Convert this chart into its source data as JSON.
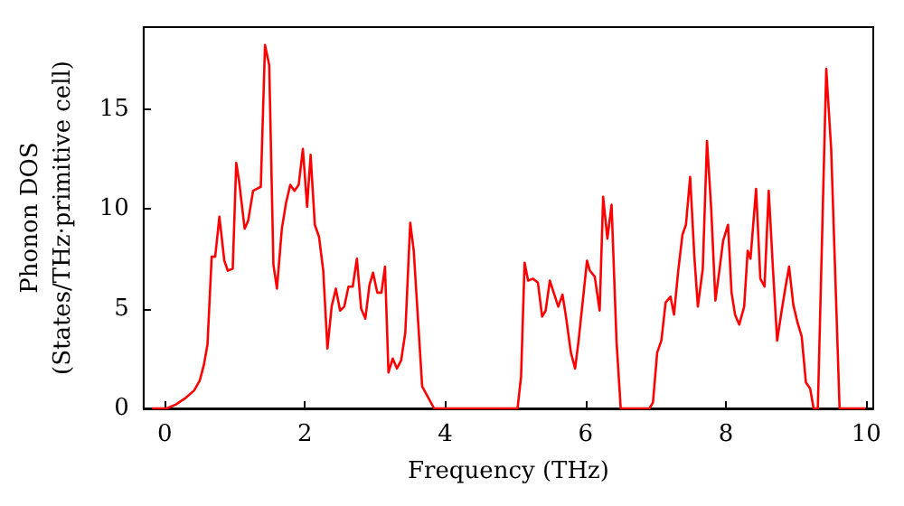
{
  "chart_data": {
    "type": "line",
    "xlabel": "Frequency (THz)",
    "ylabel": "Phonon DOS\n(States/THz·primitive cell)",
    "xlim": [
      -0.3,
      10.1
    ],
    "xticks": [
      0,
      2,
      4,
      6,
      8,
      10
    ],
    "ylim": [
      0,
      19.1
    ],
    "yticks": [
      0,
      5,
      10,
      15
    ],
    "grid": false,
    "marker": "none",
    "line_style": "solid",
    "series": [
      {
        "color": "#ff0000",
        "x": [
          -0.18,
          0.03,
          0.16,
          0.29,
          0.42,
          0.5,
          0.56,
          0.61,
          0.67,
          0.72,
          0.78,
          0.85,
          0.9,
          0.97,
          1.02,
          1.06,
          1.14,
          1.19,
          1.26,
          1.37,
          1.43,
          1.49,
          1.55,
          1.6,
          1.67,
          1.73,
          1.79,
          1.85,
          1.91,
          1.97,
          2.03,
          2.08,
          2.14,
          2.2,
          2.26,
          2.32,
          2.38,
          2.44,
          2.5,
          2.56,
          2.62,
          2.68,
          2.74,
          2.8,
          2.86,
          2.92,
          2.97,
          3.03,
          3.09,
          3.14,
          3.19,
          3.25,
          3.31,
          3.37,
          3.43,
          3.5,
          3.55,
          3.67,
          3.84,
          5.03,
          5.08,
          5.13,
          5.18,
          5.25,
          5.32,
          5.38,
          5.43,
          5.49,
          5.61,
          5.67,
          5.72,
          5.79,
          5.85,
          5.9,
          6.02,
          6.06,
          6.13,
          6.2,
          6.25,
          6.31,
          6.37,
          6.44,
          6.5,
          6.91,
          6.96,
          7.02,
          7.08,
          7.14,
          7.21,
          7.26,
          7.32,
          7.38,
          7.43,
          7.49,
          7.55,
          7.6,
          7.67,
          7.73,
          7.79,
          7.85,
          7.91,
          7.96,
          8.03,
          8.08,
          8.13,
          8.19,
          8.26,
          8.31,
          8.35,
          8.43,
          8.49,
          8.55,
          8.61,
          8.67,
          8.73,
          8.79,
          8.85,
          8.9,
          8.96,
          9.02,
          9.08,
          9.14,
          9.2,
          9.25,
          9.31,
          9.43,
          9.5,
          9.62,
          9.99
        ],
        "values": [
          0,
          0,
          0.2,
          0.5,
          0.9,
          1.4,
          2.2,
          3.2,
          7.6,
          7.6,
          9.6,
          7.4,
          6.9,
          7.0,
          12.3,
          11.4,
          9.0,
          9.4,
          10.9,
          11.1,
          18.2,
          17.2,
          7.2,
          6.0,
          9.0,
          10.3,
          11.2,
          10.9,
          11.2,
          13.0,
          10.1,
          12.7,
          9.2,
          8.6,
          6.9,
          3.0,
          5.1,
          6.0,
          4.9,
          5.1,
          6.1,
          6.1,
          7.5,
          5.0,
          4.5,
          6.2,
          6.8,
          5.8,
          5.8,
          7.1,
          1.8,
          2.5,
          2.0,
          2.4,
          3.8,
          9.3,
          7.9,
          1.1,
          0,
          0,
          1.6,
          7.3,
          6.4,
          6.5,
          6.3,
          4.6,
          4.9,
          6.4,
          5.1,
          5.7,
          4.6,
          2.8,
          2.0,
          3.4,
          7.4,
          6.9,
          6.6,
          4.9,
          10.6,
          8.5,
          10.2,
          3.4,
          0,
          0,
          0.3,
          2.8,
          3.4,
          5.3,
          5.6,
          4.7,
          6.9,
          8.7,
          9.2,
          11.6,
          7.6,
          5.1,
          7.0,
          13.4,
          10.0,
          5.4,
          7.0,
          8.4,
          9.2,
          5.8,
          4.7,
          4.2,
          5.1,
          7.9,
          7.5,
          11.0,
          6.5,
          6.1,
          10.9,
          7.0,
          3.4,
          4.8,
          6.1,
          7.1,
          5.2,
          4.3,
          3.6,
          1.3,
          1.0,
          0,
          0,
          17.0,
          13.0,
          0,
          0
        ]
      }
    ]
  }
}
